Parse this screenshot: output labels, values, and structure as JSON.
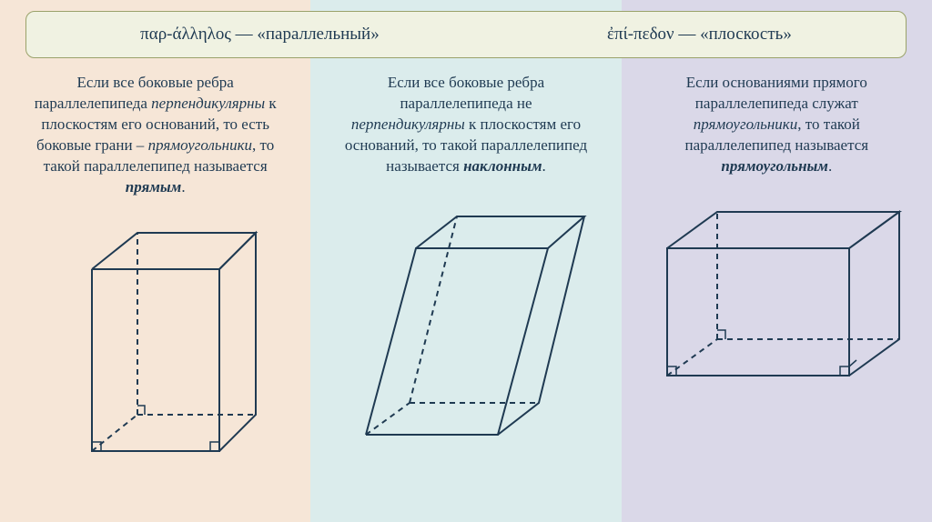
{
  "header": {
    "background": "#f0f2e2",
    "border": "#9aa26a",
    "left": "παρ-άλληλος — «параллельный»",
    "right": "ἐπί-πεδον — «плоскость»",
    "text_color": "#1f3a52",
    "fontsize": 19
  },
  "columns": [
    {
      "bg": "#f6e6d7",
      "desc_html": "Если все боковые ребра параллелепипеда <em>перпендикулярны</em> к плоскостям его оснований, то есть боковые грани – <em>прямоугольники</em>, то такой параллелепипед называется <span class='kw'>прямым</span>.",
      "text_color": "#1f3a52",
      "keyword_color": "#1f3a52",
      "shape": "right_prism",
      "stroke": "#1f3a52",
      "stroke_width": 2
    },
    {
      "bg": "#dbecec",
      "desc_html": "Если все боковые ребра параллелепипеда не <em>перпендикулярны</em> к плоскостям его оснований, то такой параллелепипед называется <span class='kw'>наклонным</span>.",
      "text_color": "#1f3a52",
      "keyword_color": "#1f3a52",
      "shape": "oblique_prism",
      "stroke": "#1f3a52",
      "stroke_width": 2
    },
    {
      "bg": "#dad8e8",
      "desc_html": "Если основаниями прямого параллелепипеда служат <em>прямоугольники</em>, то такой параллелепипед называется <span class='kw'>прямоугольным</span>.",
      "text_color": "#1f3a52",
      "keyword_color": "#1f3a52",
      "shape": "rectangular_box",
      "stroke": "#1f3a52",
      "stroke_width": 2
    }
  ]
}
